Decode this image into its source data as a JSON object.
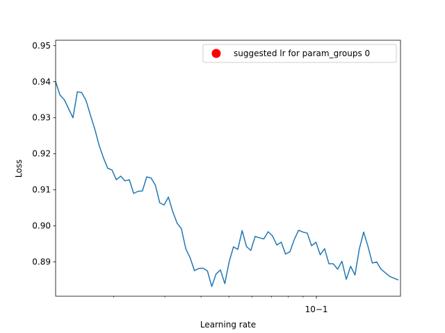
{
  "chart_data": {
    "type": "line",
    "xscale": "log",
    "xlabel": "Learning rate",
    "ylabel": "Loss",
    "xlim": [
      0.0126,
      0.195
    ],
    "ylim": [
      0.8805,
      0.9515
    ],
    "yticks": [
      0.89,
      0.9,
      0.91,
      0.92,
      0.93,
      0.94,
      0.95
    ],
    "ytick_labels": [
      "0.89",
      "0.90",
      "0.91",
      "0.92",
      "0.93",
      "0.94",
      "0.95"
    ],
    "xticks_major": [
      0.1
    ],
    "xtick_labels": [
      "10−1"
    ],
    "xticks_minor": [
      0.02,
      0.03,
      0.04,
      0.05,
      0.06,
      0.07,
      0.08,
      0.09
    ],
    "legend": {
      "location": "upper right",
      "entries": [
        {
          "label": "suggested lr for param_groups 0",
          "color": "#ff0000",
          "marker": "circle"
        }
      ]
    },
    "series": [
      {
        "color": "#1f77b4",
        "x": [
          0.0126,
          0.01304,
          0.0135,
          0.01397,
          0.01446,
          0.01497,
          0.01549,
          0.01604,
          0.0166,
          0.01718,
          0.01778,
          0.0184,
          0.01905,
          0.01972,
          0.02041,
          0.02113,
          0.02186,
          0.02263,
          0.02342,
          0.02425,
          0.0251,
          0.02598,
          0.02689,
          0.02783,
          0.02881,
          0.02982,
          0.03086,
          0.03194,
          0.03306,
          0.03422,
          0.03542,
          0.03666,
          0.03795,
          0.03928,
          0.04065,
          0.04208,
          0.04355,
          0.04508,
          0.04666,
          0.0483,
          0.04999,
          0.05174,
          0.05356,
          0.05543,
          0.05738,
          0.05939,
          0.06147,
          0.06363,
          0.06586,
          0.06817,
          0.07056,
          0.07303,
          0.07559,
          0.07824,
          0.08099,
          0.08383,
          0.08677,
          0.08981,
          0.09296,
          0.09622,
          0.0996,
          0.10309,
          0.1067,
          0.11045,
          0.11432,
          0.11833,
          0.12248,
          0.12678,
          0.13122,
          0.13583,
          0.14059,
          0.14552,
          0.15063,
          0.15591,
          0.16138,
          0.16704,
          0.1729,
          0.17896,
          0.18524,
          0.19174
        ],
        "y": [
          0.94,
          0.9363,
          0.935,
          0.9325,
          0.93,
          0.9372,
          0.937,
          0.9348,
          0.9308,
          0.927,
          0.9225,
          0.919,
          0.916,
          0.9155,
          0.9128,
          0.9138,
          0.9125,
          0.9128,
          0.909,
          0.9096,
          0.9097,
          0.9136,
          0.9133,
          0.9113,
          0.9064,
          0.9058,
          0.908,
          0.904,
          0.9008,
          0.8992,
          0.8937,
          0.8912,
          0.8876,
          0.8882,
          0.8883,
          0.8875,
          0.8832,
          0.8867,
          0.8878,
          0.884,
          0.89,
          0.8942,
          0.8935,
          0.8987,
          0.8943,
          0.8932,
          0.8971,
          0.8967,
          0.8964,
          0.8984,
          0.8972,
          0.8947,
          0.8955,
          0.8922,
          0.8928,
          0.8962,
          0.8988,
          0.8983,
          0.898,
          0.8945,
          0.8955,
          0.892,
          0.8937,
          0.8895,
          0.8895,
          0.888,
          0.8902,
          0.8852,
          0.8888,
          0.8864,
          0.8936,
          0.8983,
          0.8943,
          0.8897,
          0.89,
          0.888,
          0.887,
          0.886,
          0.8855,
          0.885
        ]
      }
    ]
  }
}
